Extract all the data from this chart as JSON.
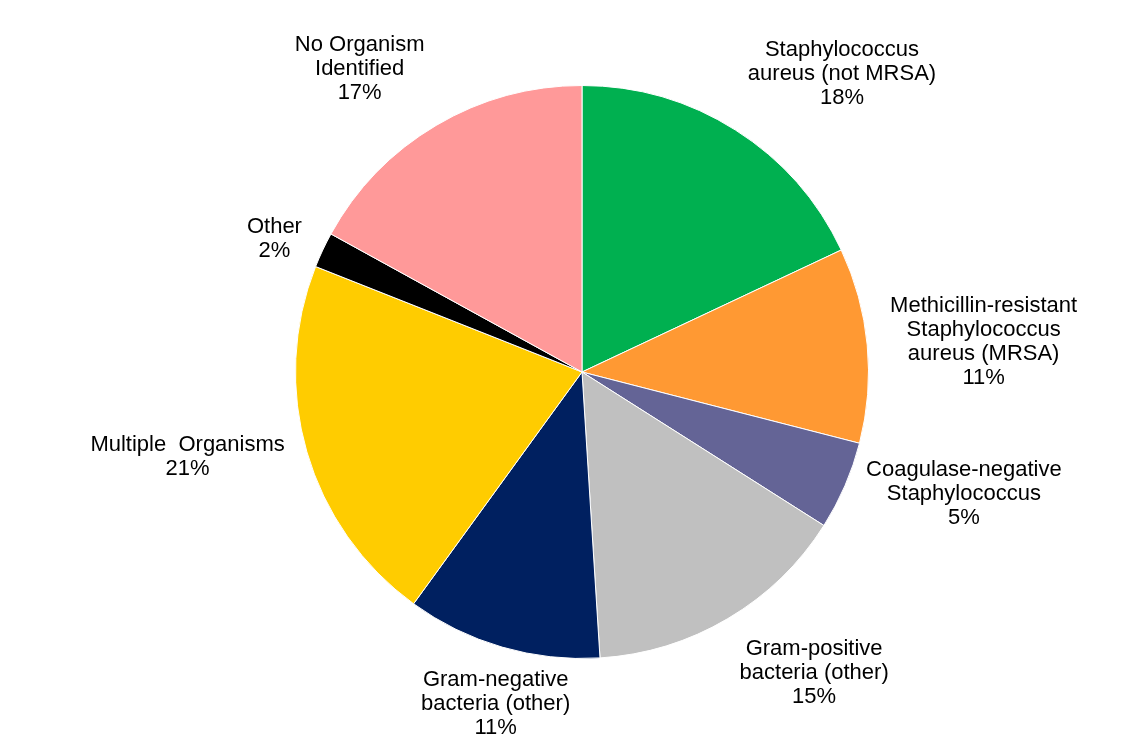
{
  "chart_data": {
    "type": "pie",
    "categories": [
      "Staphylococcus\naureus (not MRSA)",
      "Methicillin-resistant\nStaphylococcus\naureus (MRSA)",
      "Coagulase-negative\nStaphylococcus",
      "Gram-positive\nbacteria (other)",
      "Gram-negative\nbacteria (other)",
      "Multiple  Organisms",
      "Other",
      "No Organism\nIdentified"
    ],
    "values": [
      18,
      11,
      5,
      15,
      11,
      21,
      2,
      17
    ],
    "value_labels": [
      "18%",
      "11%",
      "5%",
      "15%",
      "11%",
      "21%",
      "2%",
      "17%"
    ],
    "colors": [
      "#00b050",
      "#ff9933",
      "#646496",
      "#c0c0c0",
      "#002060",
      "#ffcc00",
      "#000000",
      "#ff9999"
    ],
    "legend": false
  }
}
